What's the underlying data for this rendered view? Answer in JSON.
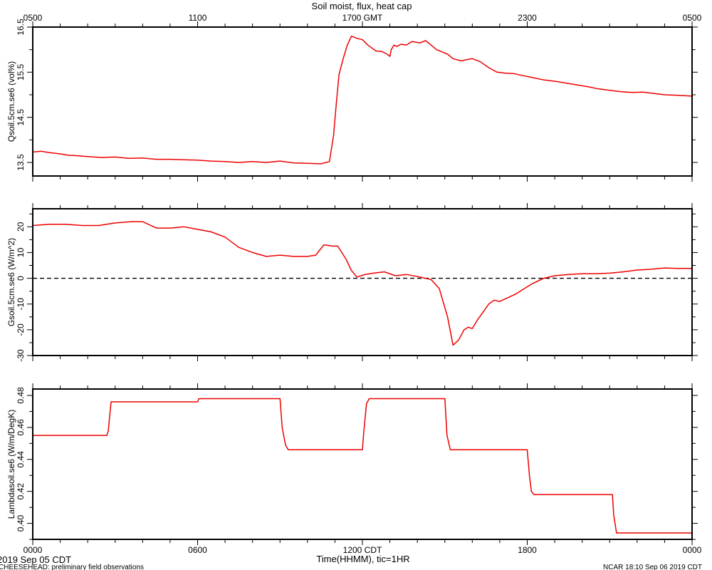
{
  "title": "Soil moist, flux, heat cap",
  "top_axis": {
    "ticks": [
      "0500",
      "1100",
      "1700 GMT",
      "2300",
      "0500"
    ]
  },
  "bottom_axis": {
    "ticks": [
      "0000",
      "0600",
      "1200 CDT",
      "1800",
      "0000"
    ],
    "label": "Time(HHMM), tic=1HR"
  },
  "footer": {
    "date": "2019 Sep 05 CDT",
    "project": "CHEESEHEAD: preliminary field observations",
    "credit": "NCAR 18:10 Sep 06 2019 CDT"
  },
  "colors": {
    "series": "#ee0000",
    "axes": "#000000",
    "zero_line": "#000000"
  },
  "chart_data": [
    {
      "type": "line",
      "ylabel": "Qsoil.5cm.se6 (vol%)",
      "ylim": [
        13.2,
        16.5
      ],
      "yticks": [
        13.5,
        14.5,
        15.5,
        16.5
      ],
      "yticklabels": [
        "13.5",
        "14.5",
        "15.5",
        "16.5"
      ],
      "xlim": [
        0,
        24
      ],
      "series": [
        {
          "x": [
            0,
            0.3,
            0.6,
            1,
            1.3,
            1.6,
            2,
            2.5,
            3,
            3.5,
            4,
            4.5,
            5,
            5.5,
            6,
            6.5,
            7,
            7.5,
            8,
            8.5,
            9,
            9.5,
            10,
            10.5,
            10.8,
            10.95,
            11.05,
            11.15,
            11.3,
            11.45,
            11.6,
            11.8,
            12,
            12.2,
            12.5,
            12.7,
            12.9,
            13,
            13.05,
            13.15,
            13.25,
            13.4,
            13.6,
            13.8,
            14.1,
            14.3,
            14.5,
            14.7,
            14.9,
            15.1,
            15.3,
            15.6,
            15.8,
            16,
            16.3,
            16.6,
            16.9,
            17.2,
            17.5,
            17.8,
            18.2,
            18.6,
            19,
            19.4,
            19.8,
            20.2,
            20.6,
            21,
            21.4,
            21.8,
            22.2,
            22.6,
            23,
            23.4,
            24
          ],
          "y": [
            13.73,
            13.75,
            13.72,
            13.69,
            13.66,
            13.65,
            13.63,
            13.61,
            13.62,
            13.59,
            13.6,
            13.57,
            13.57,
            13.56,
            13.55,
            13.53,
            13.52,
            13.5,
            13.52,
            13.5,
            13.53,
            13.49,
            13.48,
            13.47,
            13.52,
            14.1,
            14.8,
            15.45,
            15.8,
            16.1,
            16.3,
            16.25,
            16.22,
            16.1,
            15.97,
            15.96,
            15.9,
            15.85,
            16.0,
            16.1,
            16.07,
            16.12,
            16.1,
            16.18,
            16.15,
            16.2,
            16.1,
            16.0,
            15.95,
            15.9,
            15.8,
            15.75,
            15.78,
            15.8,
            15.73,
            15.6,
            15.5,
            15.48,
            15.47,
            15.43,
            15.38,
            15.33,
            15.3,
            15.26,
            15.22,
            15.18,
            15.13,
            15.1,
            15.07,
            15.05,
            15.06,
            15.03,
            15.0,
            14.99,
            14.97
          ]
        }
      ]
    },
    {
      "type": "line",
      "ylabel": "Gsoil.5cm.se6 (W/m^2)",
      "ylim": [
        -30,
        27
      ],
      "yticks": [
        -30,
        -20,
        -10,
        0,
        10,
        20
      ],
      "yticklabels": [
        "-30",
        "-20",
        "-10",
        "0",
        "10",
        "20"
      ],
      "zero_line": true,
      "xlim": [
        0,
        24
      ],
      "series": [
        {
          "x": [
            0,
            0.6,
            1.2,
            1.8,
            2.4,
            3,
            3.6,
            4,
            4.5,
            5,
            5.5,
            6,
            6.5,
            7,
            7.5,
            8,
            8.5,
            9,
            9.5,
            10,
            10.3,
            10.6,
            10.9,
            11.1,
            11.4,
            11.6,
            11.8,
            12.1,
            12.4,
            12.8,
            13.2,
            13.6,
            14.1,
            14.5,
            14.8,
            15.1,
            15.3,
            15.5,
            15.7,
            15.85,
            16.0,
            16.2,
            16.4,
            16.6,
            16.8,
            17.0,
            17.3,
            17.6,
            17.9,
            18.2,
            18.6,
            19.0,
            19.5,
            20,
            20.5,
            21,
            21.5,
            22,
            22.5,
            23,
            23.5,
            24
          ],
          "y": [
            20.5,
            21,
            21,
            20.5,
            20.5,
            21.5,
            22,
            22,
            19.5,
            19.5,
            20,
            19,
            18,
            16,
            12,
            10,
            8.5,
            9,
            8.5,
            8.5,
            9,
            13,
            12.5,
            12.5,
            7.5,
            3,
            0.5,
            1.5,
            2,
            2.5,
            1,
            1.5,
            0.5,
            -0.5,
            -4,
            -15,
            -26,
            -24,
            -20,
            -19,
            -19.5,
            -16,
            -13,
            -10,
            -8.5,
            -9,
            -7.5,
            -6,
            -4,
            -2,
            0,
            1,
            1.5,
            1.8,
            1.8,
            2,
            2.5,
            3.2,
            3.5,
            4,
            3.8,
            3.8
          ]
        }
      ]
    },
    {
      "type": "line",
      "ylabel": "Lambdasoil.se6 (W/m/DegK)",
      "ylim": [
        0.39,
        0.484
      ],
      "yticks": [
        0.4,
        0.42,
        0.44,
        0.46,
        0.48
      ],
      "yticklabels": [
        "0.40",
        "0.42",
        "0.44",
        "0.46",
        "0.48"
      ],
      "xlim": [
        0,
        24
      ],
      "series": [
        {
          "x": [
            0,
            2.7,
            2.75,
            2.85,
            2.9,
            6.0,
            6.05,
            9.0,
            9.08,
            9.2,
            9.3,
            12.0,
            12.05,
            12.15,
            12.25,
            15.0,
            15.08,
            15.2,
            18.0,
            18.08,
            18.15,
            18.25,
            21.1,
            21.15,
            21.25,
            24
          ],
          "y": [
            0.455,
            0.455,
            0.458,
            0.476,
            0.476,
            0.476,
            0.478,
            0.478,
            0.46,
            0.449,
            0.446,
            0.446,
            0.457,
            0.475,
            0.478,
            0.478,
            0.455,
            0.446,
            0.446,
            0.43,
            0.42,
            0.418,
            0.418,
            0.405,
            0.394,
            0.394
          ]
        }
      ]
    }
  ]
}
